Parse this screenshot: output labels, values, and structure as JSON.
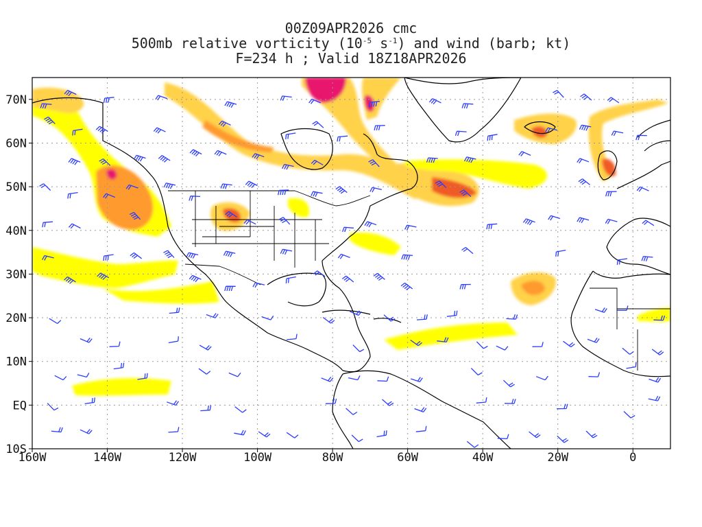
{
  "title": {
    "line1": "00Z09APR2026 cmc",
    "line2_prefix": "500mb relative vorticity (10",
    "line2_exp1": "-5",
    "line2_mid": " s",
    "line2_exp2": "-1",
    "line2_suffix": ") and wind (barb; kt)",
    "line3": "F=234 h ; Valid 18Z18APR2026"
  },
  "map": {
    "projection": "latlon",
    "lon_range": [
      -160,
      10
    ],
    "lat_range": [
      -10,
      75
    ],
    "grid": "dotted",
    "colors": {
      "yellow": "#ffff00",
      "light_orange": "#ffd24a",
      "orange": "#ff9a2e",
      "red_orange": "#f05a28",
      "magenta": "#e8176c",
      "barb": "#2a3cff",
      "coast": "#000000"
    }
  },
  "axes": {
    "x_ticks": [
      {
        "lon": -160,
        "label": "160W"
      },
      {
        "lon": -140,
        "label": "140W"
      },
      {
        "lon": -120,
        "label": "120W"
      },
      {
        "lon": -100,
        "label": "100W"
      },
      {
        "lon": -80,
        "label": "80W"
      },
      {
        "lon": -60,
        "label": "60W"
      },
      {
        "lon": -40,
        "label": "40W"
      },
      {
        "lon": -20,
        "label": "20W"
      },
      {
        "lon": 0,
        "label": "0"
      }
    ],
    "y_ticks": [
      {
        "lat": 70,
        "label": "70N"
      },
      {
        "lat": 60,
        "label": "60N"
      },
      {
        "lat": 50,
        "label": "50N"
      },
      {
        "lat": 40,
        "label": "40N"
      },
      {
        "lat": 30,
        "label": "30N"
      },
      {
        "lat": 20,
        "label": "20N"
      },
      {
        "lat": 10,
        "label": "10N"
      },
      {
        "lat": 0,
        "label": "EQ"
      },
      {
        "lat": -10,
        "label": "10S"
      }
    ]
  }
}
